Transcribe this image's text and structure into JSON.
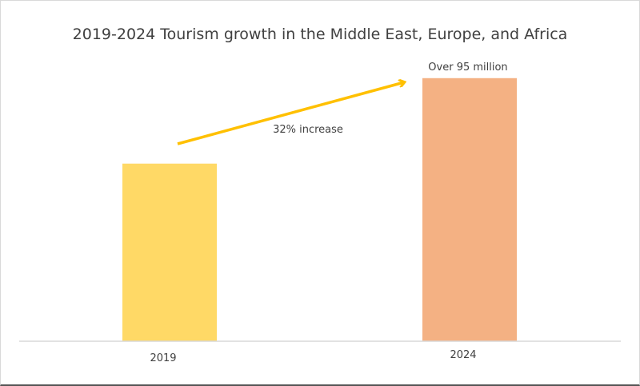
{
  "chart_data": {
    "type": "bar",
    "title": "2019-2024 Tourism growth in the Middle East, Europe, and Africa",
    "categories": [
      "2019",
      "2024"
    ],
    "values": [
      72,
      95
    ],
    "value_unit": "million",
    "colors": [
      "#FFD966",
      "#F4B183"
    ],
    "data_labels": [
      "",
      "Over 95 million"
    ],
    "annotation": {
      "text": "32% increase",
      "arrow_color": "#FFC000",
      "from": "2019",
      "to": "2024"
    },
    "xlabel": "",
    "ylabel": "",
    "grid": false,
    "legend": "none"
  }
}
